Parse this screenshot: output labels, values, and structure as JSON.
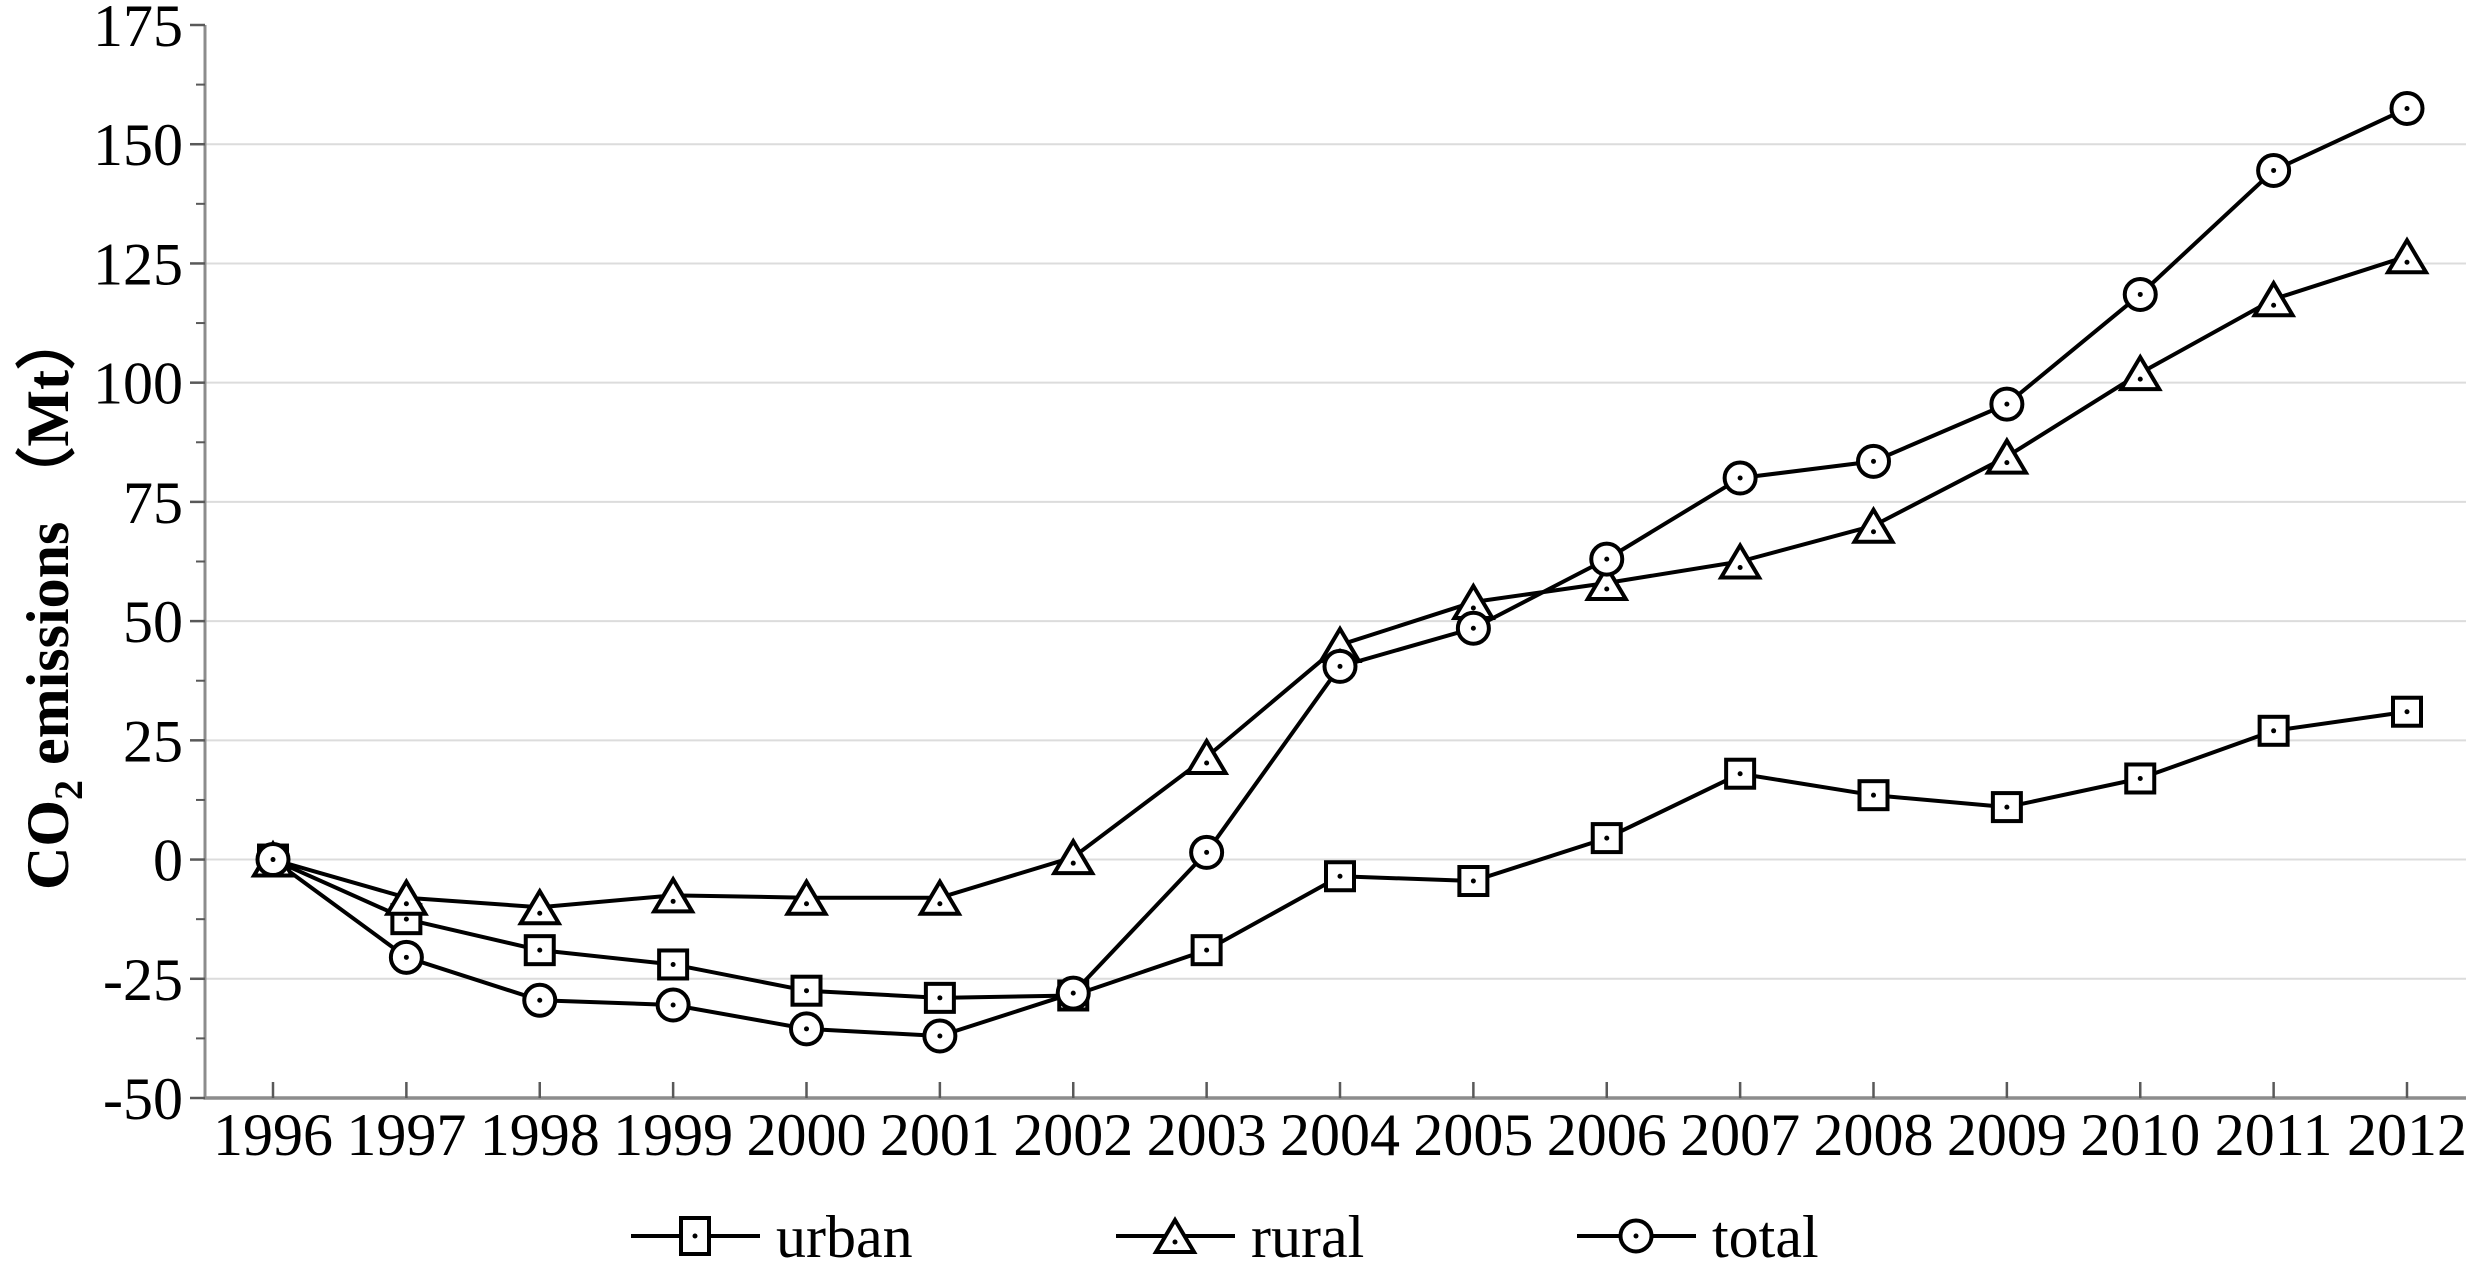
{
  "chart_data": {
    "type": "line",
    "title": "",
    "xlabel": "",
    "ylabel_text": "CO2 emissions （Mt）",
    "ylabel_parts": {
      "pre": "CO",
      "sub": "2",
      "post": " emissions （Mt）"
    },
    "ylim": [
      -50,
      175
    ],
    "ytick_step": 25,
    "yticks": [
      -50,
      -25,
      0,
      25,
      50,
      75,
      100,
      125,
      150,
      175
    ],
    "y_minor_tick_step": 12.5,
    "gridline_values": [
      -25,
      0,
      25,
      50,
      75,
      100,
      125,
      150
    ],
    "grid": "horizontal-major-only",
    "legend_position": "bottom-center",
    "years": [
      1996,
      1997,
      1998,
      1999,
      2000,
      2001,
      2002,
      2003,
      2004,
      2005,
      2006,
      2007,
      2008,
      2009,
      2010,
      2011,
      2012
    ],
    "series": [
      {
        "name": "urban",
        "legend_label": "urban",
        "marker": "square",
        "values": [
          0,
          -12.5,
          -19,
          -22,
          -27.5,
          -29,
          -28.5,
          -19,
          -3.5,
          -4.5,
          4.5,
          18,
          13.5,
          11,
          17,
          27,
          31
        ]
      },
      {
        "name": "rural",
        "legend_label": "rural",
        "marker": "triangle",
        "values": [
          0,
          -8,
          -10,
          -7.5,
          -8,
          -8,
          0.5,
          21.5,
          45,
          54,
          58,
          62.5,
          70,
          84.5,
          102,
          117.5,
          126.5
        ]
      },
      {
        "name": "total",
        "legend_label": "total",
        "marker": "circle",
        "values": [
          0,
          -20.5,
          -29.5,
          -30.5,
          -35.5,
          -37,
          -28,
          1.5,
          40.5,
          48.5,
          63,
          80,
          83.5,
          95.5,
          118.5,
          144.5,
          157.5
        ]
      }
    ],
    "colors": {
      "line": "#000000",
      "marker_fill": "#ffffff",
      "marker_dot": "#000000",
      "grid": "#dcdcdc",
      "axis": "#8c8c8c",
      "tick": "#595959",
      "text": "#000000",
      "background": "#ffffff"
    }
  }
}
